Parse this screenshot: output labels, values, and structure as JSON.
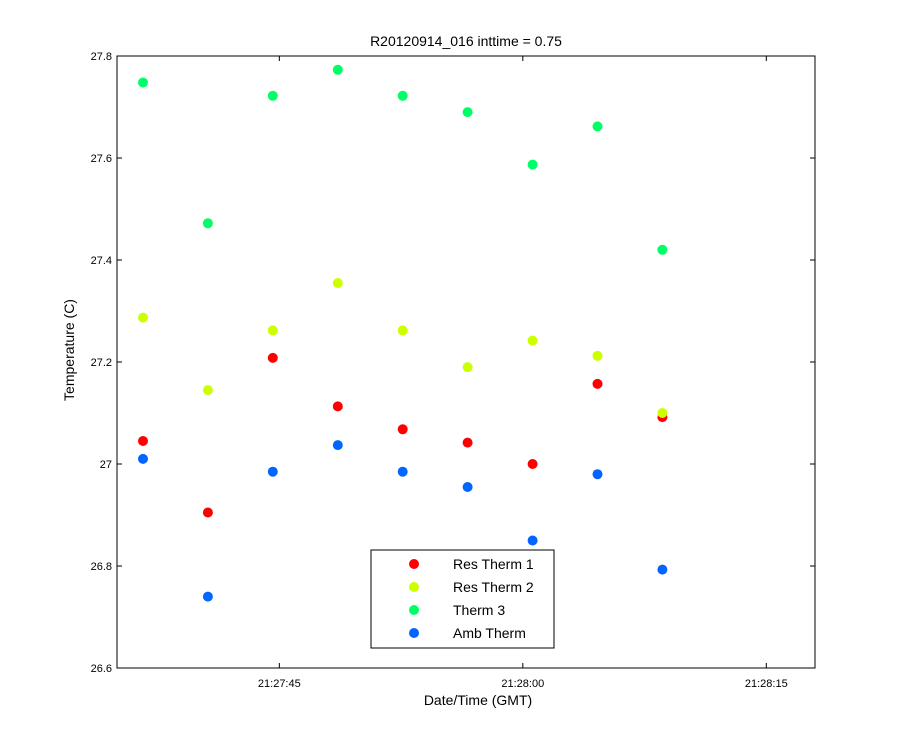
{
  "chart_data": {
    "type": "scatter",
    "title": "R20120914_016 inttime = 0.75",
    "xlabel": "Date/Time (GMT)",
    "ylabel": "Temperature (C)",
    "xlim": [
      "21:27:35",
      "21:28:18"
    ],
    "ylim": [
      26.6,
      27.8
    ],
    "xticks": [
      "21:27:45",
      "21:28:00",
      "21:28:15"
    ],
    "yticks": [
      "26.6",
      "26.8",
      "27",
      "27.2",
      "27.4",
      "27.6",
      "27.8"
    ],
    "x": [
      "21:27:36.6",
      "21:27:40.6",
      "21:27:44.6",
      "21:27:48.6",
      "21:27:52.6",
      "21:27:56.6",
      "21:28:00.6",
      "21:28:04.6",
      "21:28:08.6"
    ],
    "series": [
      {
        "name": "Res Therm 1",
        "color": "#ff0000",
        "values": [
          27.045,
          26.905,
          27.208,
          27.113,
          27.068,
          27.042,
          27.0,
          27.157,
          27.092
        ]
      },
      {
        "name": "Res Therm 2",
        "color": "#ccff00",
        "values": [
          27.287,
          27.145,
          27.262,
          27.355,
          27.262,
          27.19,
          27.242,
          27.212,
          27.1
        ]
      },
      {
        "name": "Therm 3",
        "color": "#00ff66",
        "values": [
          27.748,
          27.472,
          27.722,
          27.773,
          27.722,
          27.69,
          27.587,
          27.662,
          27.42
        ]
      },
      {
        "name": "Amb Therm",
        "color": "#0066ff",
        "values": [
          27.01,
          26.74,
          26.985,
          27.037,
          26.985,
          26.955,
          26.85,
          26.98,
          26.793
        ]
      }
    ],
    "grid": false,
    "legend_position": "bottom-center"
  }
}
